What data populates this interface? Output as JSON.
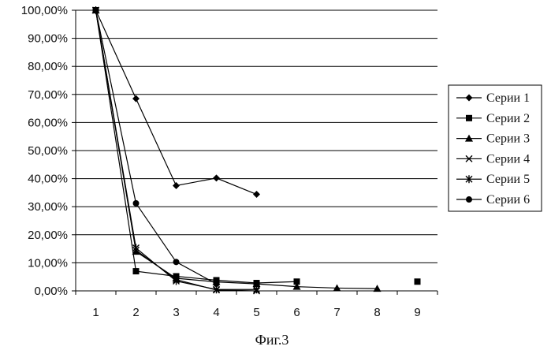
{
  "chart_data": {
    "type": "line",
    "title": "",
    "xlabel": "",
    "ylabel": "",
    "caption": "Фиг.3",
    "x_categories": [
      "1",
      "2",
      "3",
      "4",
      "5",
      "6",
      "7",
      "8",
      "9"
    ],
    "y_ticks": [
      "0,00%",
      "10,00%",
      "20,00%",
      "30,00%",
      "40,00%",
      "50,00%",
      "60,00%",
      "70,00%",
      "80,00%",
      "90,00%",
      "100,00%"
    ],
    "ylim": [
      0,
      100
    ],
    "grid": "horizontal",
    "legend_position": "right",
    "series": [
      {
        "name": "Серии 1",
        "marker": "diamond",
        "points": [
          [
            1,
            100
          ],
          [
            2,
            68.5
          ],
          [
            3,
            37.5
          ],
          [
            4,
            40.2
          ],
          [
            5,
            34.4
          ]
        ]
      },
      {
        "name": "Серии 2",
        "marker": "square",
        "points": [
          [
            1,
            100
          ],
          [
            2,
            7.0
          ],
          [
            3,
            5.2
          ],
          [
            4,
            3.8
          ],
          [
            5,
            2.8
          ],
          [
            6,
            3.3
          ],
          [
            9,
            3.3
          ]
        ]
      },
      {
        "name": "Серии 3",
        "marker": "triangle",
        "points": [
          [
            1,
            100
          ],
          [
            2,
            14.0
          ],
          [
            3,
            4.5
          ],
          [
            4,
            3.2
          ],
          [
            5,
            2.5
          ],
          [
            6,
            1.5
          ],
          [
            7,
            1.0
          ],
          [
            8,
            0.8
          ]
        ]
      },
      {
        "name": "Серии 4",
        "marker": "x",
        "points": [
          [
            1,
            100
          ],
          [
            2,
            14.5
          ],
          [
            3,
            4.0
          ],
          [
            4,
            0.3
          ],
          [
            5,
            0.0
          ]
        ]
      },
      {
        "name": "Серии 5",
        "marker": "star",
        "points": [
          [
            1,
            100
          ],
          [
            2,
            15.3
          ],
          [
            3,
            3.5
          ],
          [
            4,
            0.5
          ],
          [
            5,
            0.5
          ]
        ]
      },
      {
        "name": "Серии 6",
        "marker": "circle",
        "points": [
          [
            1,
            100
          ],
          [
            2,
            31.2
          ],
          [
            3,
            10.3
          ],
          [
            4,
            2.5
          ]
        ]
      }
    ]
  }
}
